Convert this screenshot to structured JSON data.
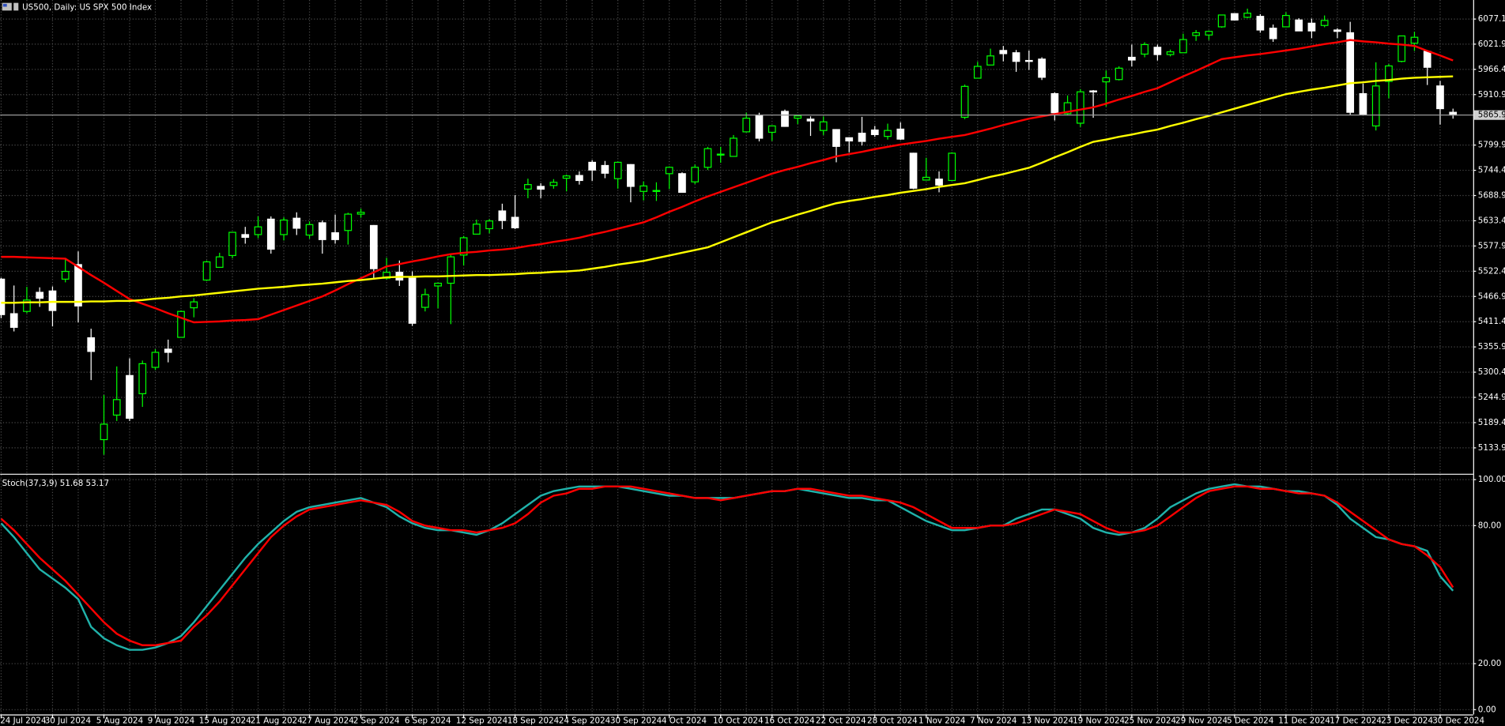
{
  "chart_data": [
    {
      "type": "candlestick",
      "title": "US500, Daily: US SPX 500 Index",
      "categories": [
        "24 Jul 2024",
        null,
        null,
        null,
        "30 Jul 2024",
        null,
        null,
        null,
        "5 Aug 2024",
        null,
        null,
        null,
        "9 Aug 2024",
        null,
        null,
        null,
        "15 Aug 2024",
        null,
        null,
        null,
        "21 Aug 2024",
        null,
        null,
        null,
        "27 Aug 2024",
        null,
        null,
        null,
        "2 Sep 2024",
        null,
        null,
        null,
        "6 Sep 2024",
        null,
        null,
        null,
        "12 Sep 2024",
        null,
        null,
        null,
        "18 Sep 2024",
        null,
        null,
        null,
        "24 Sep 2024",
        null,
        null,
        null,
        "30 Sep 2024",
        null,
        null,
        null,
        "4 Oct 2024",
        null,
        null,
        null,
        "10 Oct 2024",
        null,
        null,
        null,
        "16 Oct 2024",
        null,
        null,
        null,
        "22 Oct 2024",
        null,
        null,
        null,
        "28 Oct 2024",
        null,
        null,
        null,
        "1 Nov 2024",
        null,
        null,
        null,
        "7 Nov 2024",
        null,
        null,
        null,
        "13 Nov 2024",
        null,
        null,
        null,
        "19 Nov 2024",
        null,
        null,
        null,
        "25 Nov 2024",
        null,
        null,
        null,
        "29 Nov 2024",
        null,
        null,
        null,
        "5 Dec 2024",
        null,
        null,
        null,
        "11 Dec 2024",
        null,
        null,
        null,
        "17 Dec 2024",
        null,
        null,
        null,
        "23 Dec 2024",
        null,
        null,
        null,
        "30 Dec 2024",
        null
      ],
      "open": [
        5505,
        5429,
        5434,
        5476,
        5479,
        5505,
        5537,
        5376,
        5152,
        5206,
        5293,
        5253,
        5311,
        5351,
        5377,
        5442,
        5503,
        5531,
        5557,
        5603,
        5603,
        5637,
        5603,
        5639,
        5602,
        5629,
        5607,
        5612,
        5648,
        5623,
        5507,
        5520,
        5507,
        5443,
        5490,
        5496,
        5558,
        5604,
        5616,
        5655,
        5641,
        5703,
        5709,
        5711,
        5727,
        5733,
        5762,
        5755,
        5726,
        5757,
        5698,
        5698,
        5737,
        5737,
        5719,
        5751,
        5778,
        5775,
        5829,
        5866,
        5828,
        5874,
        5859,
        5857,
        5832,
        5834,
        5816,
        5826,
        5833,
        5819,
        5835,
        5782,
        5723,
        5725,
        5722,
        5861,
        5947,
        5976,
        6008,
        6003,
        5986,
        5989,
        5913,
        5869,
        5848,
        5919,
        5939,
        5944,
        5993,
        6000,
        6015,
        5999,
        6003,
        6041,
        6042,
        6060,
        6089,
        6081,
        6083,
        6057,
        6060,
        6075,
        6068,
        6063,
        6053,
        6047,
        5913,
        5842,
        5940,
        5984,
        6024,
        6006,
        5930,
        5872
      ],
      "high": [
        5508,
        5491,
        5488,
        5487,
        5489,
        5551,
        5566,
        5396,
        5250,
        5313,
        5331,
        5326,
        5351,
        5372,
        5436,
        5463,
        5546,
        5563,
        5608,
        5620,
        5643,
        5643,
        5641,
        5652,
        5632,
        5634,
        5647,
        5651,
        5660,
        5624,
        5552,
        5546,
        5522,
        5484,
        5497,
        5561,
        5600,
        5636,
        5637,
        5671,
        5690,
        5726,
        5716,
        5725,
        5735,
        5742,
        5767,
        5765,
        5763,
        5758,
        5720,
        5718,
        5753,
        5740,
        5757,
        5796,
        5796,
        5822,
        5871,
        5871,
        5843,
        5878,
        5866,
        5863,
        5863,
        5835,
        5817,
        5862,
        5842,
        5847,
        5850,
        5783,
        5772,
        5742,
        5784,
        5933,
        5983,
        6012,
        6018,
        6009,
        6008,
        5993,
        5916,
        5909,
        5923,
        5921,
        5964,
        5973,
        6021,
        6026,
        6021,
        6010,
        6045,
        6053,
        6052,
        6086,
        6090,
        6100,
        6088,
        6065,
        6092,
        6079,
        6078,
        6085,
        6057,
        6071,
        5935,
        5982,
        5978,
        6040,
        6049,
        6006,
        5941,
        5880
      ],
      "low": [
        5419,
        5390,
        5430,
        5444,
        5401,
        5498,
        5410,
        5283,
        5119,
        5193,
        5193,
        5224,
        5305,
        5322,
        5377,
        5421,
        5501,
        5531,
        5551,
        5583,
        5595,
        5561,
        5590,
        5602,
        5594,
        5561,
        5583,
        5581,
        5640,
        5504,
        5504,
        5490,
        5402,
        5434,
        5441,
        5406,
        5535,
        5604,
        5606,
        5615,
        5615,
        5683,
        5683,
        5704,
        5698,
        5713,
        5721,
        5727,
        5704,
        5674,
        5678,
        5677,
        5703,
        5696,
        5714,
        5745,
        5761,
        5775,
        5829,
        5808,
        5809,
        5840,
        5846,
        5820,
        5822,
        5762,
        5784,
        5799,
        5818,
        5812,
        5811,
        5703,
        5723,
        5696,
        5721,
        5857,
        5947,
        5976,
        5984,
        5961,
        5965,
        5943,
        5854,
        5865,
        5840,
        5860,
        5885,
        5942,
        5973,
        5993,
        5986,
        5995,
        6003,
        6029,
        6031,
        6058,
        6076,
        6079,
        6047,
        6027,
        6060,
        6051,
        6035,
        6059,
        6035,
        5867,
        5866,
        5832,
        5903,
        5982,
        6007,
        5932,
        5845,
        5858
      ],
      "close": [
        5427,
        5399,
        5459,
        5463,
        5436,
        5522,
        5446,
        5346,
        5186,
        5240,
        5199,
        5319,
        5344,
        5344,
        5434,
        5455,
        5543,
        5554,
        5608,
        5597,
        5620,
        5571,
        5635,
        5617,
        5625,
        5592,
        5592,
        5648,
        5652,
        5528,
        5520,
        5503,
        5408,
        5471,
        5496,
        5554,
        5596,
        5626,
        5633,
        5634,
        5618,
        5713,
        5703,
        5718,
        5732,
        5722,
        5745,
        5738,
        5762,
        5709,
        5710,
        5700,
        5751,
        5696,
        5751,
        5792,
        5780,
        5815,
        5859,
        5815,
        5842,
        5841,
        5864,
        5853,
        5851,
        5797,
        5809,
        5808,
        5823,
        5832,
        5813,
        5705,
        5729,
        5712,
        5782,
        5929,
        5973,
        5996,
        6001,
        5984,
        5985,
        5949,
        5871,
        5893,
        5917,
        5917,
        5948,
        5969,
        5987,
        6021,
        5999,
        6005,
        6032,
        6047,
        6050,
        6086,
        6075,
        6090,
        6053,
        6034,
        6085,
        6051,
        6051,
        6074,
        6050,
        5872,
        5867,
        5930,
        5974,
        6040,
        6037,
        5971,
        5880,
        5866
      ],
      "up_color": "#00ff00",
      "down_color": "#ffffff",
      "series": [
        {
          "color": "#ff0000",
          "values": [
            5554,
            5554,
            5553,
            5552,
            5551,
            5550,
            5532,
            5514,
            5497,
            5479,
            5461,
            5451,
            5441,
            5430,
            5420,
            5410,
            5411,
            5412,
            5414,
            5415,
            5417,
            5427,
            5437,
            5447,
            5457,
            5467,
            5480,
            5494,
            5507,
            5520,
            5533,
            5538,
            5544,
            5549,
            5555,
            5560,
            5563,
            5565,
            5568,
            5570,
            5573,
            5578,
            5582,
            5587,
            5591,
            5596,
            5603,
            5609,
            5616,
            5623,
            5630,
            5641,
            5653,
            5664,
            5676,
            5687,
            5697,
            5707,
            5717,
            5727,
            5737,
            5745,
            5752,
            5760,
            5767,
            5775,
            5780,
            5785,
            5791,
            5796,
            5801,
            5805,
            5809,
            5814,
            5818,
            5822,
            5829,
            5836,
            5844,
            5851,
            5858,
            5863,
            5868,
            5873,
            5878,
            5883,
            5891,
            5900,
            5908,
            5917,
            5925,
            5938,
            5951,
            5963,
            5976,
            5989,
            5993,
            5997,
            6000,
            6004,
            6008,
            6012,
            6017,
            6022,
            6026,
            6031,
            6028,
            6026,
            6023,
            6021,
            6018,
            6007,
            5997,
            5986
          ]
        },
        {
          "color": "#ffff00",
          "values": [
            5453,
            5453,
            5454,
            5454,
            5455,
            5455,
            5455,
            5456,
            5456,
            5457,
            5457,
            5459,
            5462,
            5464,
            5467,
            5469,
            5472,
            5475,
            5478,
            5481,
            5484,
            5486,
            5488,
            5491,
            5493,
            5495,
            5498,
            5501,
            5503,
            5506,
            5509,
            5510,
            5510,
            5511,
            5511,
            5512,
            5513,
            5514,
            5514,
            5515,
            5516,
            5518,
            5519,
            5521,
            5522,
            5524,
            5528,
            5532,
            5537,
            5541,
            5545,
            5551,
            5557,
            5563,
            5569,
            5575,
            5586,
            5597,
            5608,
            5619,
            5630,
            5638,
            5647,
            5655,
            5664,
            5672,
            5677,
            5681,
            5686,
            5690,
            5695,
            5699,
            5703,
            5708,
            5712,
            5716,
            5723,
            5730,
            5736,
            5743,
            5750,
            5761,
            5773,
            5784,
            5796,
            5807,
            5812,
            5818,
            5823,
            5829,
            5834,
            5842,
            5849,
            5857,
            5864,
            5872,
            5880,
            5888,
            5896,
            5904,
            5912,
            5917,
            5922,
            5926,
            5931,
            5936,
            5938,
            5941,
            5943,
            5946,
            5948,
            5949,
            5950,
            5951
          ]
        }
      ],
      "ylim": [
        5079,
        6119
      ],
      "yticks": [
        6077.1,
        6021.9,
        5966.4,
        5910.9,
        5799.9,
        5744.4,
        5688.9,
        5633.4,
        5577.9,
        5522.4,
        5466.9,
        5411.4,
        5355.9,
        5300.4,
        5244.9,
        5189.4,
        5133.9
      ],
      "last_price": 5865.9,
      "grid": true
    },
    {
      "type": "line",
      "title": "Stoch(37,3,9) 51.68 53.17",
      "series": [
        {
          "color": "#20b2aa",
          "values": [
            81,
            75,
            68,
            61,
            57,
            53,
            48,
            36,
            31,
            28,
            26,
            26,
            27,
            29,
            32,
            38,
            45,
            52,
            59,
            66,
            72,
            77,
            82,
            86,
            88,
            89,
            90,
            91,
            92,
            90,
            88,
            84,
            81,
            79,
            78,
            78,
            77,
            76,
            78,
            81,
            85,
            89,
            93,
            95,
            96,
            97,
            97,
            97,
            97,
            96,
            95,
            94,
            93,
            93,
            92,
            92,
            92,
            92,
            93,
            94,
            95,
            95,
            96,
            95,
            94,
            93,
            92,
            92,
            91,
            91,
            88,
            85,
            82,
            80,
            78,
            78,
            79,
            80,
            80,
            83,
            85,
            87,
            87,
            85,
            83,
            79,
            77,
            76,
            77,
            79,
            83,
            88,
            91,
            94,
            96,
            97,
            98,
            97,
            97,
            96,
            95,
            95,
            94,
            93,
            89,
            83,
            79,
            75,
            74,
            72,
            71,
            69,
            58,
            51.68
          ]
        },
        {
          "color": "#ff0000",
          "values": [
            83,
            78,
            72,
            66,
            61,
            56,
            50,
            44,
            38,
            33,
            30,
            28,
            28,
            29,
            30,
            36,
            41,
            47,
            54,
            61,
            68,
            75,
            80,
            84,
            87,
            88,
            89,
            90,
            91,
            90,
            89,
            86,
            82,
            80,
            79,
            78,
            78,
            77,
            78,
            79,
            81,
            85,
            90,
            93,
            94,
            96,
            96,
            97,
            97,
            97,
            96,
            95,
            94,
            93,
            92,
            92,
            91,
            92,
            93,
            94,
            95,
            95,
            96,
            96,
            95,
            94,
            93,
            93,
            92,
            91,
            90,
            88,
            85,
            82,
            79,
            79,
            79,
            80,
            80,
            81,
            83,
            85,
            87,
            86,
            85,
            82,
            79,
            77,
            77,
            78,
            80,
            84,
            88,
            92,
            95,
            96,
            97,
            97,
            96,
            96,
            95,
            94,
            94,
            93,
            90,
            86,
            82,
            78,
            74,
            72,
            71,
            67,
            62,
            53.17
          ]
        }
      ],
      "ylim": [
        -2.1,
        101.7
      ],
      "yticks": [
        {
          "value": 100,
          "label": "100.00"
        },
        {
          "value": 80,
          "label": "80.00"
        },
        {
          "value": 20,
          "label": "20.00"
        },
        {
          "value": 0,
          "label": "0.00"
        }
      ],
      "grid": true
    }
  ]
}
